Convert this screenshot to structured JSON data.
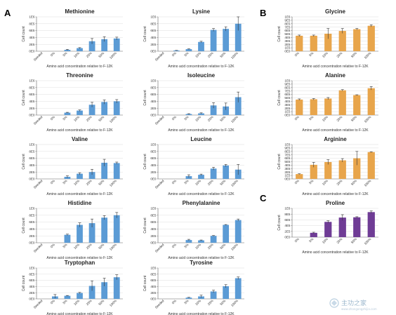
{
  "panel_letters": [
    "A",
    "B",
    "C"
  ],
  "colors": {
    "A": "#5b9bd5",
    "B": "#e8a54b",
    "C": "#6f3c95",
    "error": "#333333",
    "grid": "#dddddd",
    "axis": "#666666"
  },
  "watermark": {
    "text": "主功之家",
    "sub": "www.zhangongzhijia.com"
  },
  "chart_data": [
    {
      "id": "methionine",
      "panel": "A",
      "type": "bar",
      "title": "Methionine",
      "ylabel": "Cell count",
      "xlabel": "Amino acid concentration relative to F-12K",
      "categories": [
        "Seeded",
        "0%",
        "5%",
        "10%",
        "25%",
        "50%",
        "100%"
      ],
      "values": [
        0,
        0,
        40000,
        90000,
        290000,
        350000,
        370000
      ],
      "errors": [
        0,
        0,
        15000,
        15000,
        80000,
        70000,
        40000
      ],
      "y_ticks": [
        "0E0",
        "2E5",
        "4E5",
        "6E5",
        "8E5",
        "1E6"
      ],
      "ylim": [
        0,
        1000000
      ],
      "grid": true
    },
    {
      "id": "lysine",
      "panel": "A",
      "type": "bar",
      "title": "Lysine",
      "ylabel": "Cell count",
      "xlabel": "Amino acid concentration relative to F-12K",
      "categories": [
        "Seeded",
        "0%",
        "5%",
        "10%",
        "25%",
        "50%",
        "100%"
      ],
      "values": [
        0,
        20000,
        60000,
        270000,
        620000,
        650000,
        800000
      ],
      "errors": [
        0,
        5000,
        10000,
        20000,
        40000,
        60000,
        200000
      ],
      "y_ticks": [
        "0E0",
        "2E5",
        "4E5",
        "6E5",
        "8E5",
        "1E6"
      ],
      "ylim": [
        0,
        1000000
      ],
      "grid": true
    },
    {
      "id": "glycine",
      "panel": "B",
      "type": "bar",
      "title": "Glycine",
      "ylabel": "Cell count",
      "xlabel": "Amino acid concentration relative to F-12K",
      "categories": [
        "0%",
        "5%",
        "10%",
        "25%",
        "50%",
        "100%"
      ],
      "values": [
        450000,
        450000,
        510000,
        590000,
        640000,
        740000
      ],
      "errors": [
        20000,
        20000,
        150000,
        70000,
        20000,
        30000
      ],
      "y_ticks": [
        "0E0",
        "1E5",
        "2E5",
        "3E5",
        "4E5",
        "5E5",
        "6E5",
        "7E5",
        "8E5",
        "9E5",
        "1E6"
      ],
      "ylim": [
        0,
        1000000
      ],
      "grid": true
    },
    {
      "id": "threonine",
      "panel": "A",
      "type": "bar",
      "title": "Threonine",
      "ylabel": "Cell count",
      "xlabel": "Amino acid concentration relative to F-12K",
      "categories": [
        "Seeded",
        "0%",
        "5%",
        "10%",
        "25%",
        "50%",
        "100%"
      ],
      "values": [
        0,
        0,
        70000,
        130000,
        300000,
        380000,
        400000
      ],
      "errors": [
        0,
        0,
        10000,
        20000,
        70000,
        60000,
        50000
      ],
      "y_ticks": [
        "0E0",
        "2E5",
        "4E5",
        "6E5",
        "8E5",
        "1E6"
      ],
      "ylim": [
        0,
        1000000
      ],
      "grid": true
    },
    {
      "id": "isoleucine",
      "panel": "A",
      "type": "bar",
      "title": "Isoleucine",
      "ylabel": "Cell count",
      "xlabel": "Amino acid concentration relative to F-12K",
      "categories": [
        "Seeded",
        "0%",
        "5%",
        "10%",
        "25%",
        "50%",
        "100%"
      ],
      "values": [
        0,
        0,
        30000,
        50000,
        280000,
        250000,
        520000
      ],
      "errors": [
        0,
        0,
        10000,
        15000,
        80000,
        100000,
        150000
      ],
      "y_ticks": [
        "0E0",
        "2E5",
        "4E5",
        "6E5",
        "8E5",
        "1E6"
      ],
      "ylim": [
        0,
        1000000
      ],
      "grid": true
    },
    {
      "id": "alanine",
      "panel": "B",
      "type": "bar",
      "title": "Alanine",
      "ylabel": "Cell count",
      "xlabel": "Amino acid concentration relative to F-12K",
      "categories": [
        "0%",
        "5%",
        "10%",
        "25%",
        "50%",
        "100%"
      ],
      "values": [
        450000,
        460000,
        480000,
        720000,
        580000,
        780000
      ],
      "errors": [
        20000,
        20000,
        30000,
        20000,
        10000,
        50000
      ],
      "y_ticks": [
        "0E0",
        "1E5",
        "2E5",
        "3E5",
        "4E5",
        "5E5",
        "6E5",
        "7E5",
        "8E5",
        "9E5",
        "1E6"
      ],
      "ylim": [
        0,
        1000000
      ],
      "grid": true
    },
    {
      "id": "valine",
      "panel": "A",
      "type": "bar",
      "title": "Valine",
      "ylabel": "Cell count",
      "xlabel": "Amino acid concentration relative to F-12K",
      "categories": [
        "Seeded",
        "0%",
        "5%",
        "10%",
        "25%",
        "50%",
        "100%"
      ],
      "values": [
        0,
        0,
        60000,
        150000,
        200000,
        470000,
        460000
      ],
      "errors": [
        0,
        0,
        30000,
        30000,
        80000,
        100000,
        30000
      ],
      "y_ticks": [
        "0E0",
        "2E5",
        "4E5",
        "6E5",
        "8E5",
        "1E6"
      ],
      "ylim": [
        0,
        1000000
      ],
      "grid": true
    },
    {
      "id": "leucine",
      "panel": "A",
      "type": "bar",
      "title": "Leucine",
      "ylabel": "Cell count",
      "xlabel": "Amino acid concentration relative to F-12K",
      "categories": [
        "Seeded",
        "0%",
        "5%",
        "10%",
        "25%",
        "50%",
        "100%"
      ],
      "values": [
        0,
        0,
        80000,
        120000,
        300000,
        390000,
        270000
      ],
      "errors": [
        0,
        0,
        40000,
        20000,
        40000,
        30000,
        150000
      ],
      "y_ticks": [
        "0E0",
        "2E5",
        "4E5",
        "6E5",
        "8E5",
        "1E6"
      ],
      "ylim": [
        0,
        1000000
      ],
      "grid": true
    },
    {
      "id": "arginine",
      "panel": "B",
      "type": "bar",
      "title": "Arginine",
      "ylabel": "Cell count",
      "xlabel": "Amino acid concentration relative to F-12K",
      "categories": [
        "0%",
        "5%",
        "10%",
        "25%",
        "50%",
        "100%"
      ],
      "values": [
        140000,
        410000,
        490000,
        540000,
        600000,
        780000
      ],
      "errors": [
        10000,
        70000,
        70000,
        50000,
        200000,
        10000
      ],
      "y_ticks": [
        "0E0",
        "1E5",
        "2E5",
        "3E5",
        "4E5",
        "5E5",
        "6E5",
        "7E5",
        "8E5",
        "9E5",
        "1E6"
      ],
      "ylim": [
        0,
        1000000
      ],
      "grid": true
    },
    {
      "id": "histidine",
      "panel": "A",
      "type": "bar",
      "title": "Histidine",
      "ylabel": "Cell count",
      "xlabel": "Amino acid concentration relative to F-12K",
      "categories": [
        "Seeded",
        "0%",
        "5%",
        "10%",
        "25%",
        "50%",
        "100%"
      ],
      "values": [
        0,
        0,
        230000,
        520000,
        570000,
        730000,
        800000
      ],
      "errors": [
        0,
        0,
        20000,
        60000,
        120000,
        60000,
        80000
      ],
      "y_ticks": [
        "0E0",
        "2E5",
        "4E5",
        "6E5",
        "8E5",
        "1E6"
      ],
      "ylim": [
        0,
        1000000
      ],
      "grid": true
    },
    {
      "id": "phenylalanine",
      "panel": "A",
      "type": "bar",
      "title": "Phenylalanine",
      "ylabel": "Cell count",
      "xlabel": "Amino acid concentration relative to F-12K",
      "categories": [
        "Seeded",
        "0%",
        "5%",
        "10%",
        "25%",
        "50%",
        "100%"
      ],
      "values": [
        0,
        0,
        80000,
        70000,
        200000,
        520000,
        660000
      ],
      "errors": [
        0,
        0,
        20000,
        10000,
        10000,
        10000,
        30000
      ],
      "y_ticks": [
        "0E0",
        "2E5",
        "4E5",
        "6E5",
        "8E5",
        "1E6"
      ],
      "ylim": [
        0,
        1000000
      ],
      "grid": true
    },
    {
      "id": "proline",
      "panel": "C",
      "type": "bar",
      "title": "Proline",
      "ylabel": "Cell count",
      "xlabel": "Amino acid concentration relative to F-12K",
      "categories": [
        "0%",
        "5%",
        "10%",
        "25%",
        "50%",
        "100%"
      ],
      "values": [
        0,
        150000,
        530000,
        680000,
        690000,
        870000
      ],
      "errors": [
        0,
        20000,
        40000,
        100000,
        20000,
        40000
      ],
      "y_ticks": [
        "0E0",
        "2E5",
        "4E5",
        "6E5",
        "8E5",
        "1E6"
      ],
      "ylim": [
        0,
        1000000
      ],
      "grid": true
    },
    {
      "id": "tryptophan",
      "panel": "A",
      "type": "bar",
      "title": "Tryptophan",
      "ylabel": "Cell count",
      "xlabel": "Amino acid concentration relative to F-12K",
      "categories": [
        "Seeded",
        "0%",
        "5%",
        "10%",
        "25%",
        "50%",
        "100%"
      ],
      "values": [
        0,
        80000,
        100000,
        190000,
        420000,
        540000,
        700000
      ],
      "errors": [
        0,
        60000,
        10000,
        20000,
        160000,
        130000,
        80000
      ],
      "y_ticks": [
        "0E0",
        "2E5",
        "4E5",
        "6E5",
        "8E5",
        "1E6"
      ],
      "ylim": [
        0,
        1000000
      ],
      "grid": true
    },
    {
      "id": "tyrosine",
      "panel": "A",
      "type": "bar",
      "title": "Tyrosine",
      "ylabel": "Cell count",
      "xlabel": "Amino acid concentration relative to F-12K",
      "categories": [
        "Seeded",
        "0%",
        "5%",
        "10%",
        "25%",
        "50%",
        "100%"
      ],
      "values": [
        0,
        0,
        40000,
        80000,
        240000,
        410000,
        670000
      ],
      "errors": [
        0,
        0,
        10000,
        40000,
        40000,
        50000,
        40000
      ],
      "y_ticks": [
        "0E0",
        "2E5",
        "4E5",
        "6E5",
        "8E5",
        "1E6"
      ],
      "ylim": [
        0,
        1000000
      ],
      "grid": true
    }
  ]
}
